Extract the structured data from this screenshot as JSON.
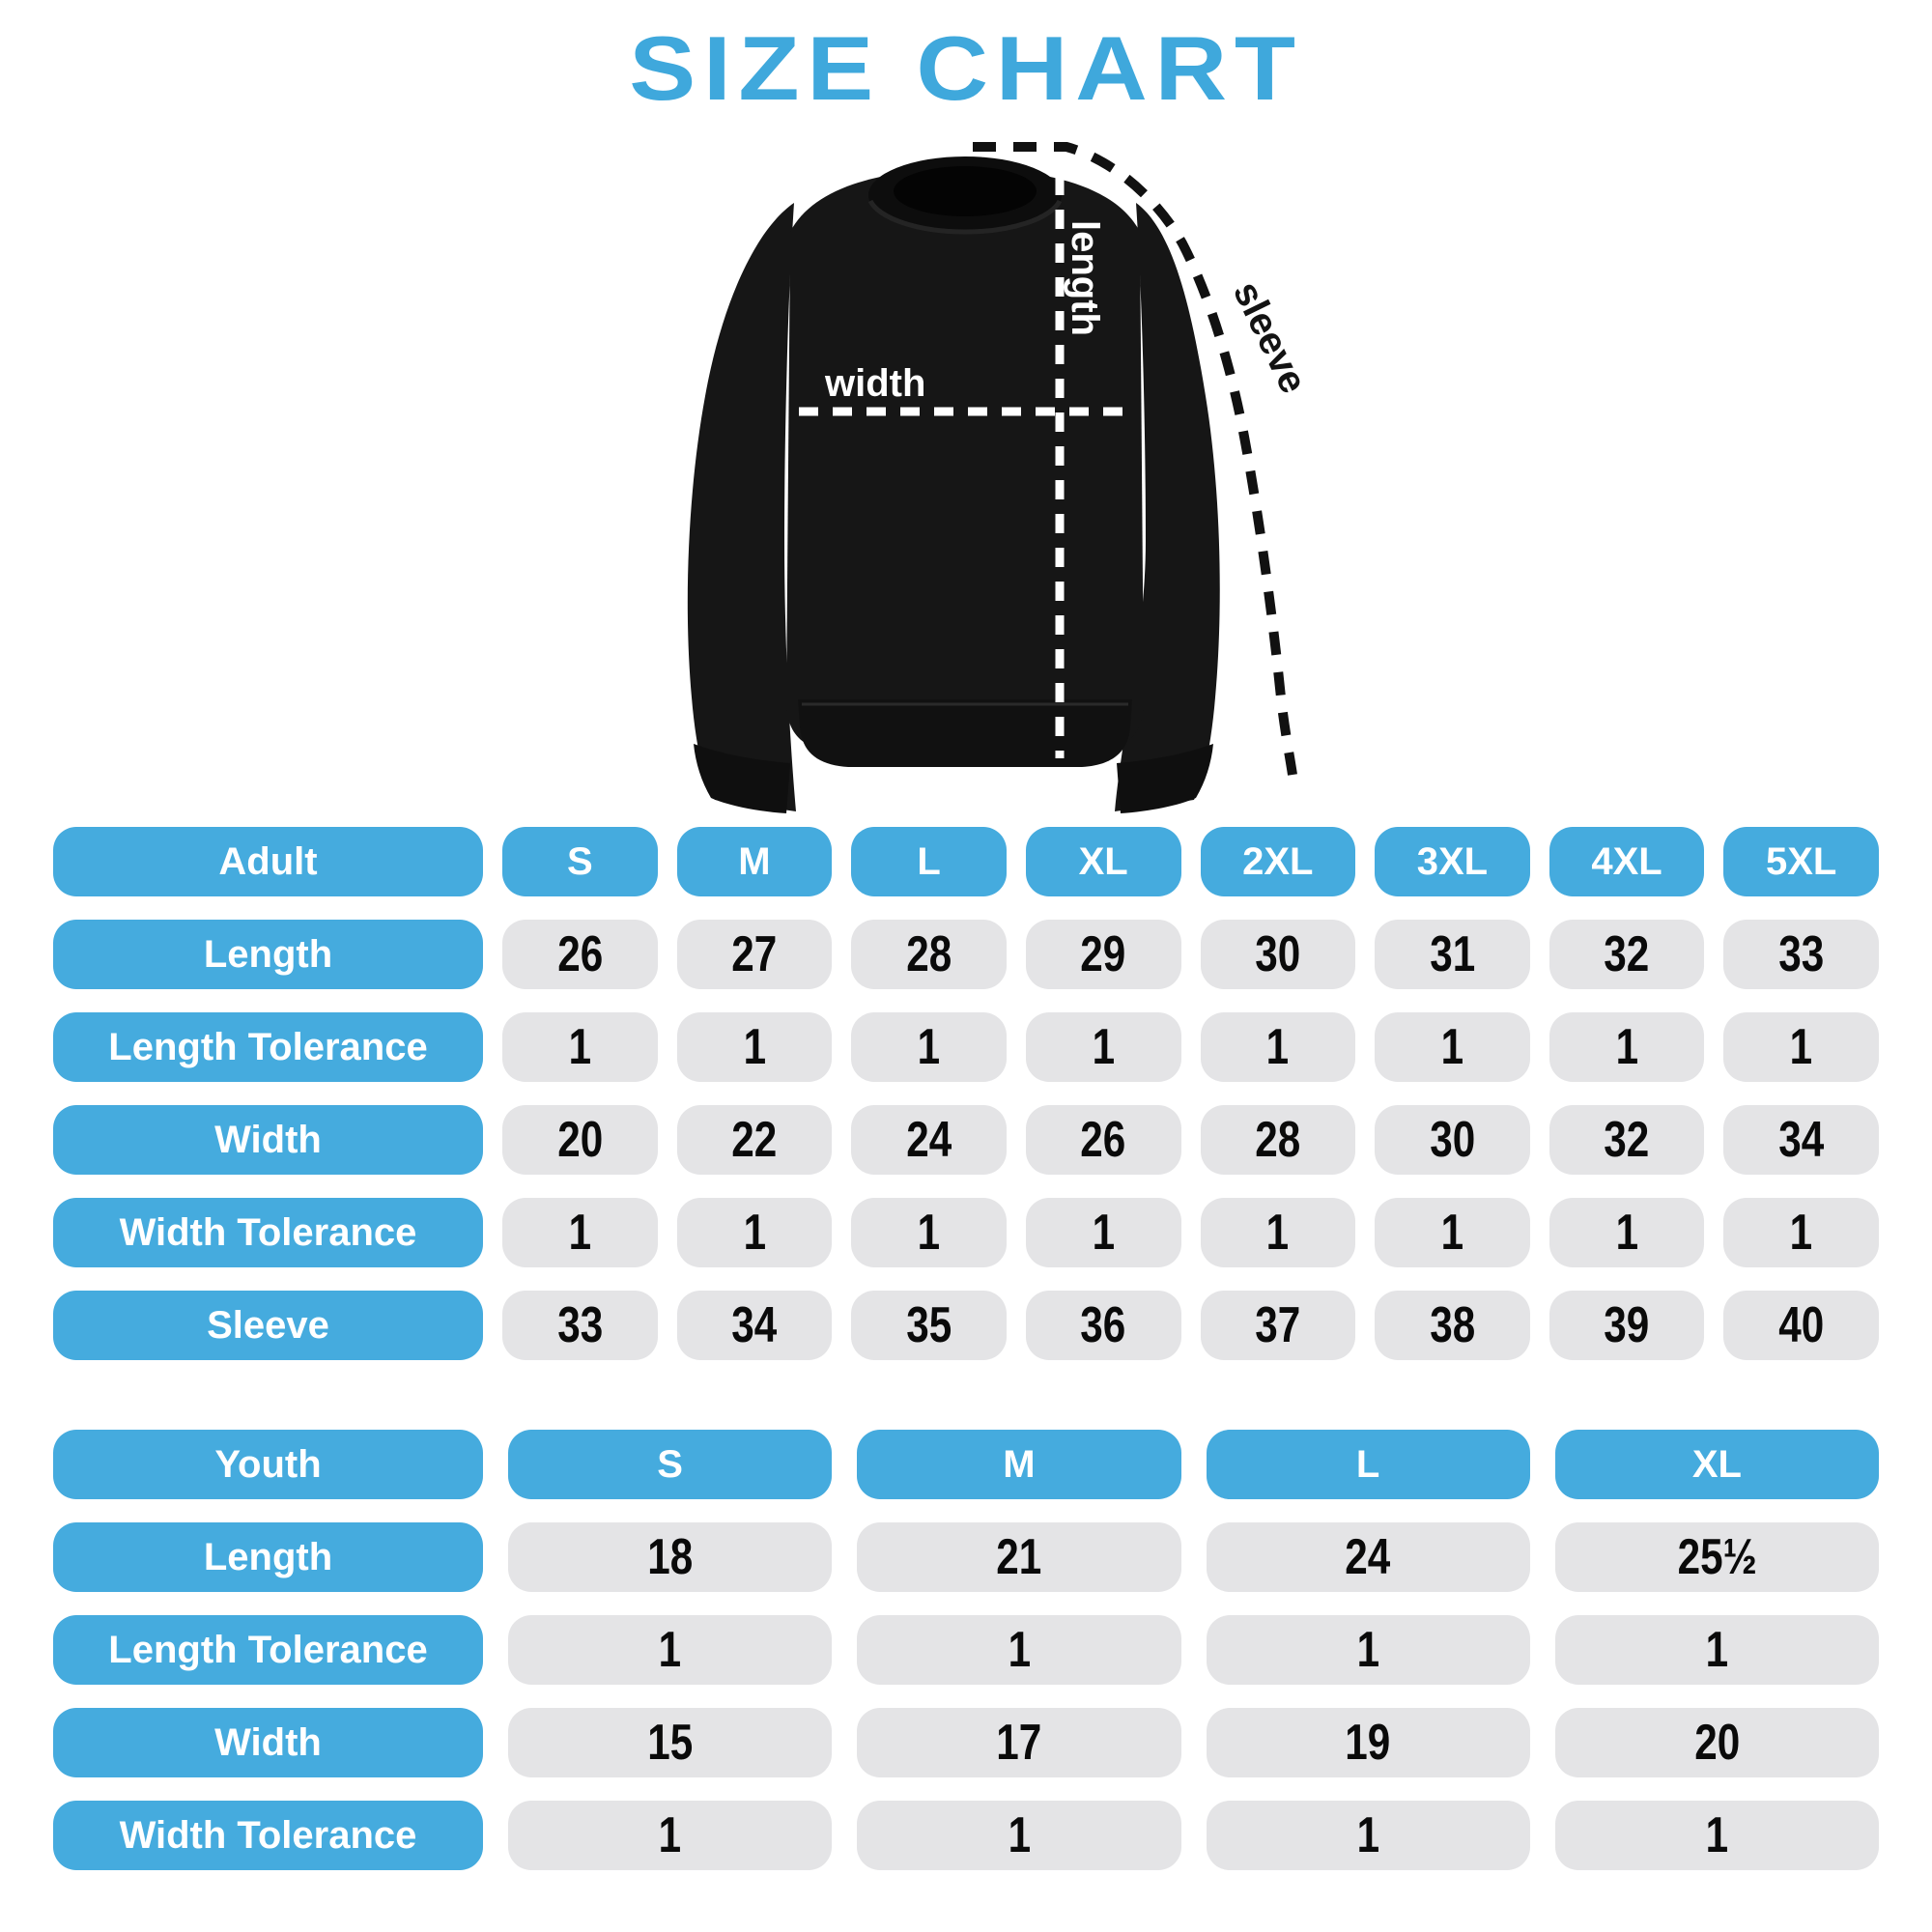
{
  "title": "SIZE CHART",
  "colors": {
    "accent_blue": "#45abde",
    "title_blue": "#3fa8dc",
    "cell_gray": "#e4e4e6",
    "number_black": "#0a0a0a",
    "shirt_black": "#161616"
  },
  "diagram": {
    "labels": {
      "length": "length",
      "width": "width",
      "sleeve": "sleeve"
    }
  },
  "adult_table": {
    "header": {
      "label": "Adult",
      "sizes": [
        "S",
        "M",
        "L",
        "XL",
        "2XL",
        "3XL",
        "4XL",
        "5XL"
      ]
    },
    "rows": [
      {
        "label": "Length",
        "values": [
          "26",
          "27",
          "28",
          "29",
          "30",
          "31",
          "32",
          "33"
        ]
      },
      {
        "label": "Length Tolerance",
        "values": [
          "1",
          "1",
          "1",
          "1",
          "1",
          "1",
          "1",
          "1"
        ]
      },
      {
        "label": "Width",
        "values": [
          "20",
          "22",
          "24",
          "26",
          "28",
          "30",
          "32",
          "34"
        ]
      },
      {
        "label": "Width Tolerance",
        "values": [
          "1",
          "1",
          "1",
          "1",
          "1",
          "1",
          "1",
          "1"
        ]
      },
      {
        "label": "Sleeve",
        "values": [
          "33",
          "34",
          "35",
          "36",
          "37",
          "38",
          "39",
          "40"
        ]
      }
    ]
  },
  "youth_table": {
    "header": {
      "label": "Youth",
      "sizes": [
        "S",
        "M",
        "L",
        "XL"
      ]
    },
    "rows": [
      {
        "label": "Length",
        "values": [
          "18",
          "21",
          "24",
          "25½"
        ]
      },
      {
        "label": "Length Tolerance",
        "values": [
          "1",
          "1",
          "1",
          "1"
        ]
      },
      {
        "label": "Width",
        "values": [
          "15",
          "17",
          "19",
          "20"
        ]
      },
      {
        "label": "Width Tolerance",
        "values": [
          "1",
          "1",
          "1",
          "1"
        ]
      }
    ]
  }
}
